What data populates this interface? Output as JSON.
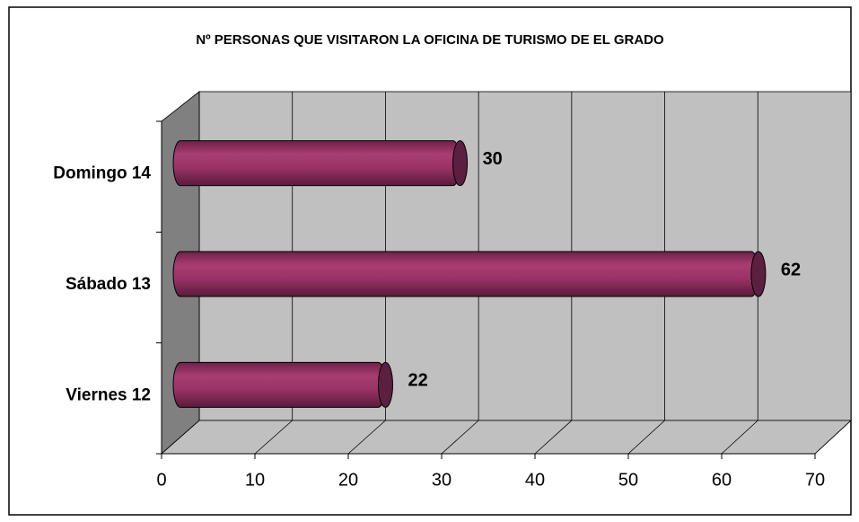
{
  "chart_data": {
    "type": "bar",
    "orientation": "horizontal",
    "three_d": true,
    "title": "Nº PERSONAS QUE VISITARON LA OFICINA DE TURISMO DE EL GRADO",
    "categories": [
      "Viernes 12",
      "Sábado 13",
      "Domingo 14"
    ],
    "values": [
      22,
      62,
      30
    ],
    "color": "#993366",
    "xlim": [
      0,
      70
    ],
    "xticks": [
      0,
      10,
      20,
      30,
      40,
      50,
      60,
      70
    ],
    "grid": true
  }
}
